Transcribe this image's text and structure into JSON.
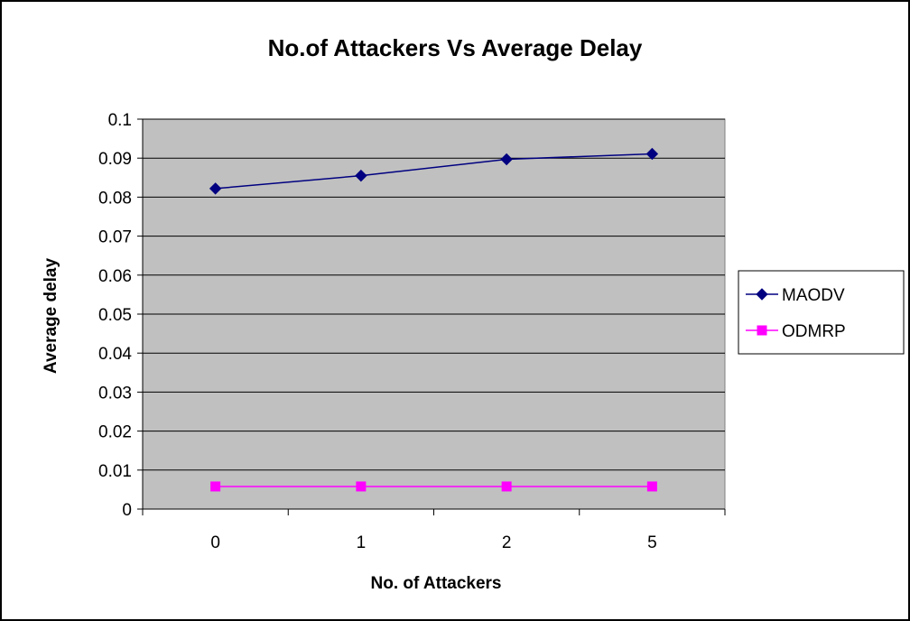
{
  "chart_data": {
    "type": "line",
    "title": "No.of Attackers Vs Average Delay",
    "xlabel": "No. of Attackers",
    "ylabel": "Average delay",
    "categories": [
      "0",
      "1",
      "2",
      "5"
    ],
    "ylim": [
      0,
      0.1
    ],
    "yticks": [
      "0",
      "0.01",
      "0.02",
      "0.03",
      "0.04",
      "0.05",
      "0.06",
      "0.07",
      "0.08",
      "0.09",
      "0.1"
    ],
    "grid": true,
    "legend_position": "right",
    "plot_background": "#c0c0c0",
    "series": [
      {
        "name": "MAODV",
        "values": [
          0.0822,
          0.0855,
          0.0897,
          0.0911
        ],
        "color": "#000080",
        "marker": "diamond"
      },
      {
        "name": "ODMRP",
        "values": [
          0.0058,
          0.0058,
          0.0058,
          0.0058
        ],
        "color": "#ff00ff",
        "marker": "square"
      }
    ]
  }
}
